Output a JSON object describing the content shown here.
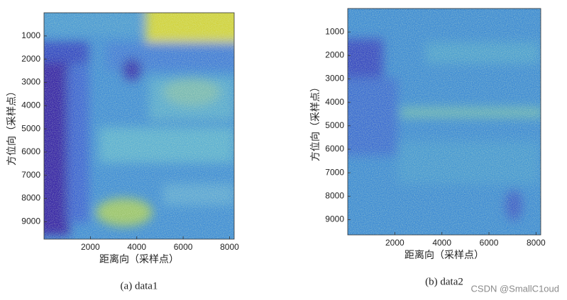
{
  "chart_data": [
    {
      "type": "image",
      "xlabel": "距离向（采样点）",
      "ylabel": "方位向（采样点）",
      "caption": "(a) data1",
      "xlim": [
        0,
        8200
      ],
      "xticks": [
        2000,
        4000,
        6000,
        8000
      ],
      "ylim": [
        9750,
        0
      ],
      "yticks": [
        1000,
        2000,
        3000,
        4000,
        5000,
        6000,
        7000,
        8000,
        9000
      ]
    },
    {
      "type": "image",
      "xlabel": "距离向（采样点）",
      "ylabel": "方位向（采样点）",
      "caption": "(b) data2",
      "xlim": [
        0,
        8200
      ],
      "xticks": [
        2000,
        4000,
        6000,
        8000
      ],
      "ylim": [
        9650,
        0
      ],
      "yticks": [
        1000,
        2000,
        3000,
        4000,
        5000,
        6000,
        7000,
        8000,
        9000
      ]
    }
  ],
  "watermark": "CSDN @SmallC1oud"
}
